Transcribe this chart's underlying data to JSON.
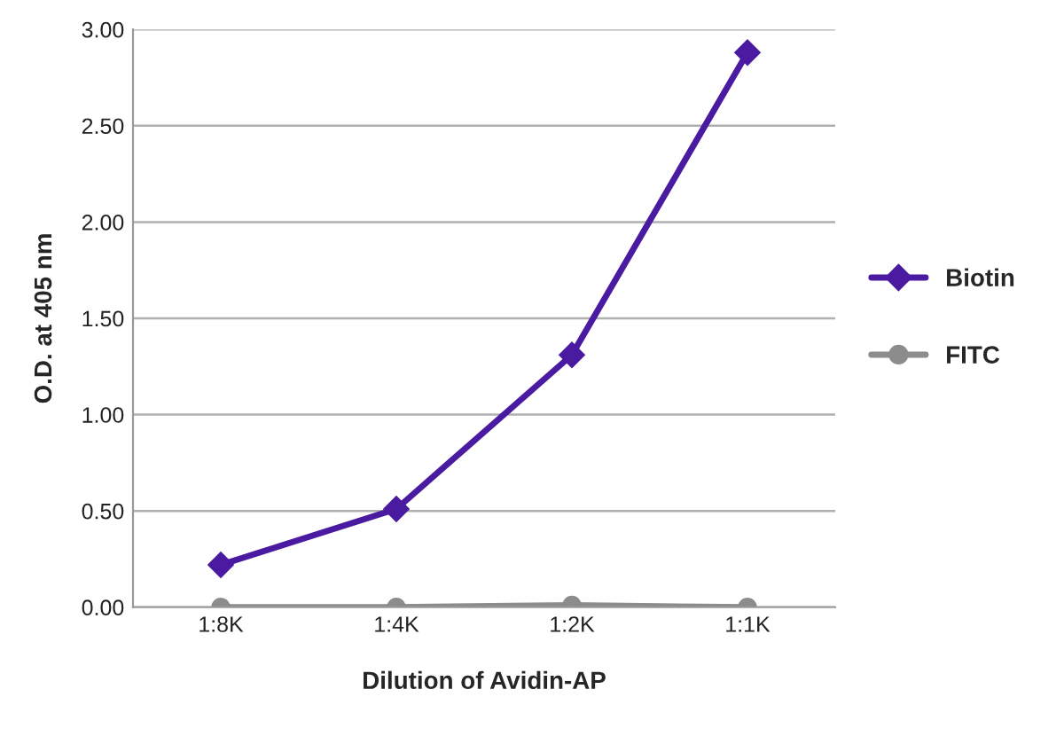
{
  "chart_data": {
    "type": "line",
    "xlabel": "Dilution of Avidin-AP",
    "ylabel": "O.D. at 405 nm",
    "categories": [
      "1:8K",
      "1:4K",
      "1:2K",
      "1:1K"
    ],
    "series": [
      {
        "name": "Biotin",
        "color": "#4a1aa0",
        "marker": "diamond",
        "values": [
          0.22,
          0.51,
          1.31,
          2.88
        ]
      },
      {
        "name": "FITC",
        "color": "#8c8c8c",
        "marker": "circle",
        "values": [
          0.0,
          0.0,
          0.01,
          0.0
        ]
      }
    ],
    "ylim": [
      0,
      3
    ],
    "yticks": [
      {
        "value": 0,
        "label": "0.00"
      },
      {
        "value": 0.5,
        "label": "0.50"
      },
      {
        "value": 1,
        "label": "1.00"
      },
      {
        "value": 1.5,
        "label": "1.50"
      },
      {
        "value": 2,
        "label": "2.00"
      },
      {
        "value": 2.5,
        "label": "2.50"
      },
      {
        "value": 3,
        "label": "3.00"
      }
    ],
    "grid": "y",
    "legend": "right",
    "line_style": "solid"
  }
}
